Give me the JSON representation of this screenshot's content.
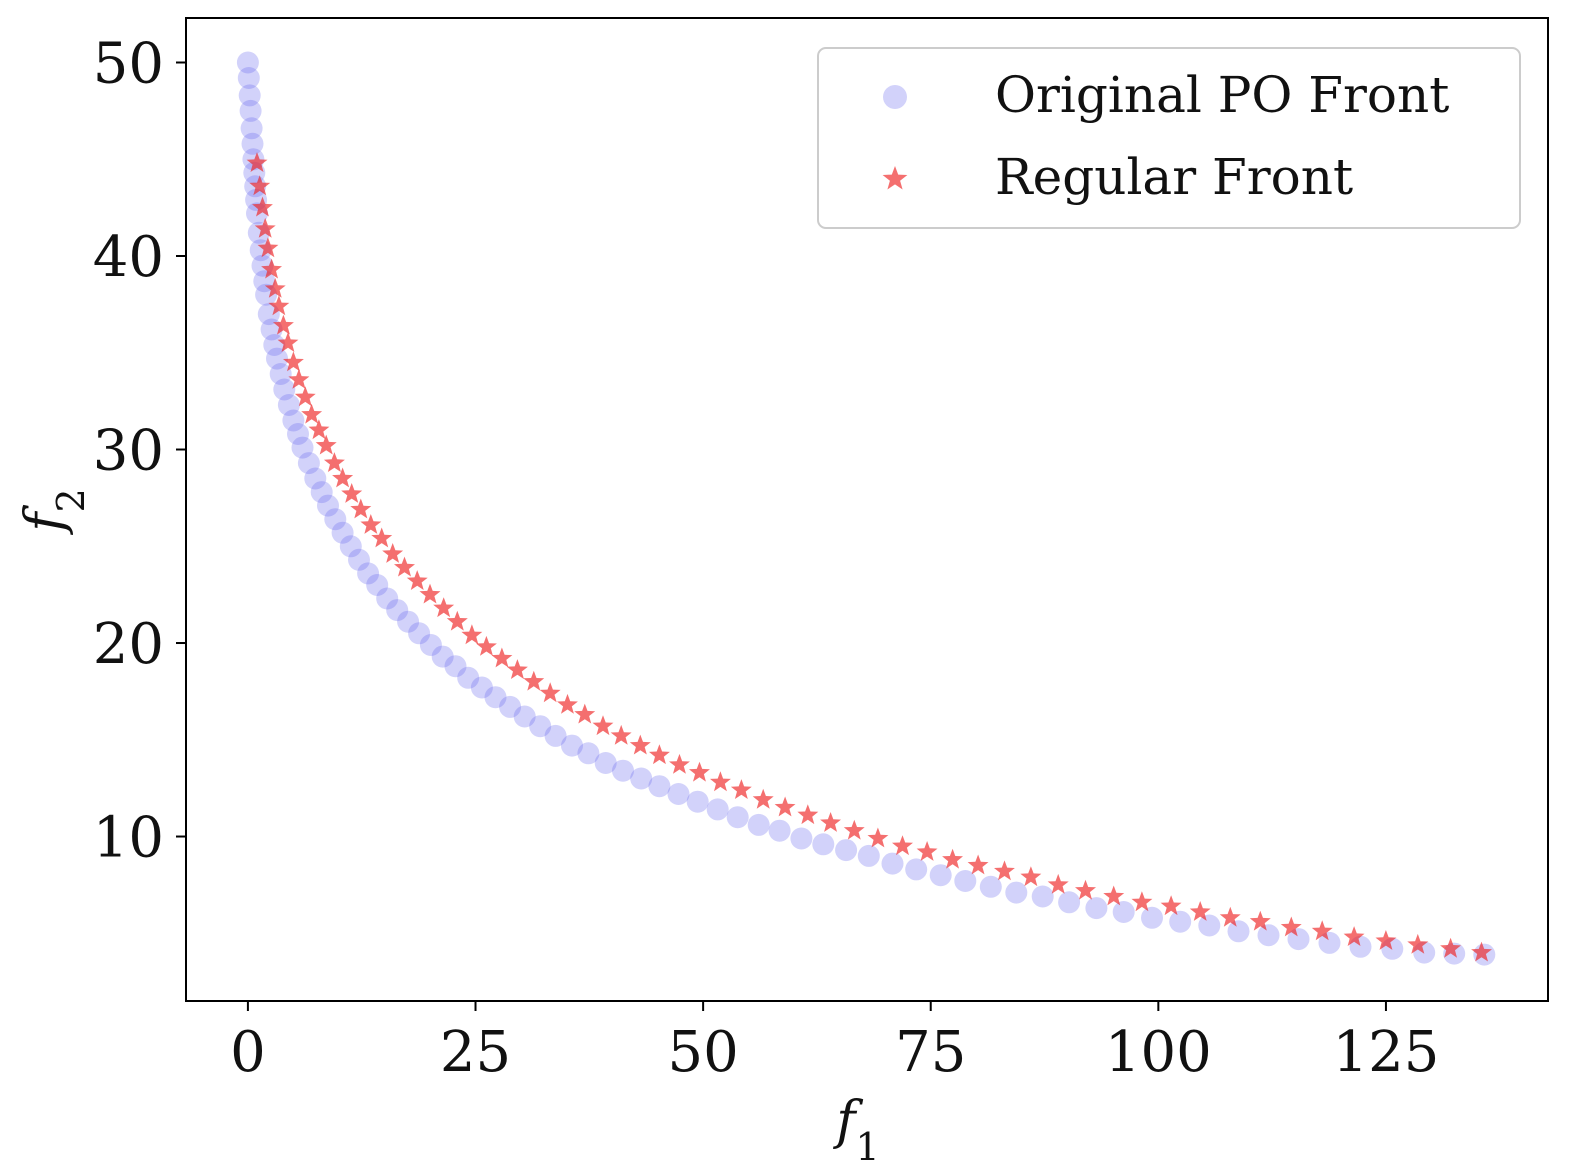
{
  "chart_data": {
    "type": "scatter",
    "title": "",
    "xlabel": "f1",
    "ylabel": "f2",
    "xlim": [
      -6.8,
      142.8
    ],
    "ylim": [
      1.5,
      52.3
    ],
    "x_ticks": [
      0,
      25,
      50,
      75,
      100,
      125
    ],
    "y_ticks": [
      10,
      20,
      30,
      40,
      50
    ],
    "grid": false,
    "legend_position": "top-right",
    "series": [
      {
        "name": "Original PO Front",
        "marker": "circle",
        "color": "#6b6bf0",
        "opacity": 0.3,
        "x": [
          0.0,
          0.1,
          0.2,
          0.3,
          0.4,
          0.5,
          0.6,
          0.7,
          0.8,
          0.9,
          1.0,
          1.2,
          1.4,
          1.6,
          1.8,
          2.0,
          2.3,
          2.6,
          2.9,
          3.2,
          3.6,
          4.0,
          4.5,
          5.0,
          5.5,
          6.0,
          6.7,
          7.4,
          8.1,
          8.8,
          9.6,
          10.4,
          11.3,
          12.2,
          13.2,
          14.2,
          15.3,
          16.4,
          17.6,
          18.8,
          20.1,
          21.4,
          22.8,
          24.2,
          25.7,
          27.2,
          28.8,
          30.4,
          32.1,
          33.8,
          35.6,
          37.4,
          39.3,
          41.2,
          43.2,
          45.2,
          47.3,
          49.4,
          51.6,
          53.8,
          56.1,
          58.4,
          60.8,
          63.2,
          65.7,
          68.2,
          70.8,
          73.4,
          76.1,
          78.8,
          81.6,
          84.4,
          87.3,
          90.2,
          93.2,
          96.2,
          99.3,
          102.4,
          105.6,
          108.8,
          112.1,
          115.4,
          118.8,
          122.2,
          125.7,
          129.2,
          132.5,
          135.8
        ],
        "y": [
          50.0,
          49.2,
          48.3,
          47.5,
          46.6,
          45.8,
          45.0,
          44.3,
          43.6,
          42.9,
          42.2,
          41.2,
          40.3,
          39.5,
          38.7,
          38.0,
          37.0,
          36.2,
          35.4,
          34.7,
          33.9,
          33.1,
          32.3,
          31.5,
          30.8,
          30.1,
          29.3,
          28.5,
          27.8,
          27.1,
          26.4,
          25.7,
          25.0,
          24.3,
          23.6,
          23.0,
          22.3,
          21.7,
          21.1,
          20.5,
          19.9,
          19.3,
          18.8,
          18.2,
          17.7,
          17.2,
          16.7,
          16.2,
          15.7,
          15.2,
          14.7,
          14.3,
          13.8,
          13.4,
          13.0,
          12.6,
          12.2,
          11.8,
          11.4,
          11.0,
          10.6,
          10.3,
          9.9,
          9.6,
          9.3,
          9.0,
          8.6,
          8.3,
          8.0,
          7.7,
          7.4,
          7.1,
          6.9,
          6.6,
          6.3,
          6.1,
          5.8,
          5.6,
          5.4,
          5.1,
          4.9,
          4.7,
          4.5,
          4.3,
          4.2,
          4.0,
          3.95,
          3.9
        ]
      },
      {
        "name": "Regular Front",
        "marker": "star",
        "color": "#ee2222",
        "opacity": 0.65,
        "x": [
          1.0,
          1.3,
          1.6,
          1.9,
          2.2,
          2.6,
          3.0,
          3.4,
          3.9,
          4.4,
          5.0,
          5.6,
          6.3,
          7.0,
          7.8,
          8.6,
          9.5,
          10.4,
          11.4,
          12.4,
          13.5,
          14.7,
          15.9,
          17.2,
          18.6,
          20.0,
          21.5,
          23.0,
          24.6,
          26.2,
          27.9,
          29.6,
          31.4,
          33.2,
          35.1,
          37.0,
          39.0,
          41.0,
          43.1,
          45.2,
          47.4,
          49.6,
          51.9,
          54.2,
          56.6,
          59.0,
          61.5,
          64.0,
          66.6,
          69.2,
          71.9,
          74.6,
          77.4,
          80.2,
          83.1,
          86.0,
          89.0,
          92.0,
          95.1,
          98.2,
          101.4,
          104.6,
          107.9,
          111.2,
          114.6,
          118.0,
          121.5,
          125.0,
          128.5,
          132.1,
          135.5
        ],
        "y": [
          44.8,
          43.6,
          42.5,
          41.4,
          40.4,
          39.3,
          38.3,
          37.4,
          36.4,
          35.5,
          34.5,
          33.6,
          32.7,
          31.8,
          31.0,
          30.2,
          29.3,
          28.5,
          27.7,
          26.9,
          26.1,
          25.4,
          24.6,
          23.9,
          23.2,
          22.5,
          21.8,
          21.1,
          20.4,
          19.8,
          19.2,
          18.6,
          18.0,
          17.4,
          16.8,
          16.3,
          15.7,
          15.2,
          14.7,
          14.2,
          13.7,
          13.3,
          12.8,
          12.4,
          11.9,
          11.5,
          11.1,
          10.7,
          10.3,
          9.9,
          9.5,
          9.2,
          8.8,
          8.5,
          8.2,
          7.9,
          7.5,
          7.2,
          6.9,
          6.6,
          6.4,
          6.1,
          5.8,
          5.6,
          5.3,
          5.1,
          4.8,
          4.6,
          4.4,
          4.2,
          4.0
        ]
      }
    ]
  }
}
